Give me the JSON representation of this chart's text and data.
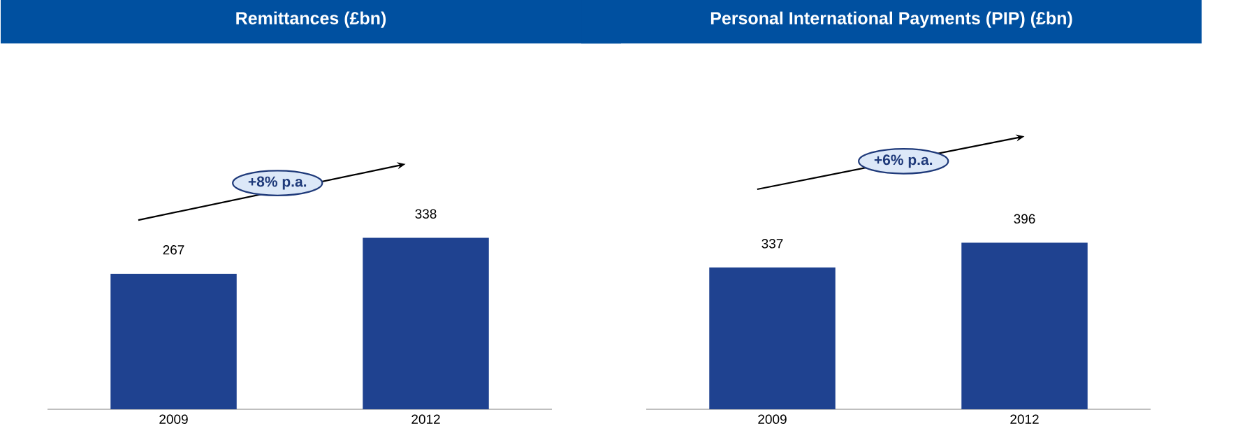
{
  "chart_data": [
    {
      "type": "bar",
      "title": "Remittances (£bn)",
      "categories": [
        "2009",
        "2012"
      ],
      "values": [
        267,
        338
      ],
      "color": "#1f4290",
      "data_labels": true,
      "annotations": [
        "+8% p.a."
      ]
    },
    {
      "type": "bar",
      "title": "Personal International Payments (PIP) (£bn)",
      "categories": [
        "2009",
        "2012"
      ],
      "values": [
        337,
        396
      ],
      "color": "#1f4290",
      "data_labels": true,
      "annotations": [
        "+6% p.a."
      ]
    }
  ]
}
